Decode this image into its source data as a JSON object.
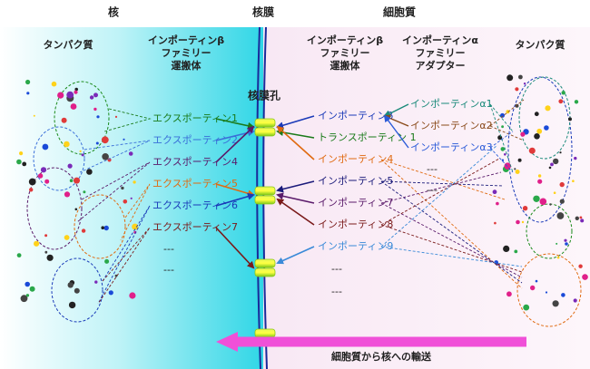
{
  "header": {
    "nucleus": "核",
    "membrane": "核膜",
    "cytoplasm": "細胞質"
  },
  "left": {
    "protein": "タンパク質",
    "carrier_title": [
      "インポーティンβ",
      "ファミリー",
      "運搬体"
    ],
    "items": [
      {
        "label": "エクスポーティン1",
        "color": "#1a7a1a"
      },
      {
        "label": "エクスポーティン2",
        "color": "#3a6fd8"
      },
      {
        "label": "エクスポーティン4",
        "color": "#5a1a6a"
      },
      {
        "label": "エクスポーティン5",
        "color": "#e06a10"
      },
      {
        "label": "エクスポーティン6",
        "color": "#1a3ab8"
      },
      {
        "label": "エクスポーティン7",
        "color": "#7a1a1a"
      },
      {
        "label": "---",
        "color": "#222"
      },
      {
        "label": "---",
        "color": "#222"
      }
    ]
  },
  "right": {
    "carrier_title": [
      "インポーティンβ",
      "ファミリー",
      "運搬体"
    ],
    "adapter_title": [
      "インポーティンα",
      "ファミリー",
      "アダプター"
    ],
    "protein": "タンパク質",
    "items": [
      {
        "label": "インポーティンβ",
        "color": "#1a3ab8"
      },
      {
        "label": "トランスポーティン 1",
        "color": "#1a7a1a"
      },
      {
        "label": "インポーティン4",
        "color": "#e06a10"
      },
      {
        "label": "インポーティン5",
        "color": "#1a1a7a"
      },
      {
        "label": "インポーティン7",
        "color": "#5a1a6a"
      },
      {
        "label": "インポーティン8",
        "color": "#7a1a1a"
      },
      {
        "label": "インポーティン9",
        "color": "#3a8ad8"
      },
      {
        "label": "---",
        "color": "#222"
      },
      {
        "label": "---",
        "color": "#222"
      }
    ],
    "adapters": [
      {
        "label": "インポーティンα1",
        "color": "#1a8a7a"
      },
      {
        "label": "インポーティンα2",
        "color": "#8a4a1a"
      },
      {
        "label": "インポーティンα3",
        "color": "#2a5ad8"
      },
      {
        "label": "---",
        "color": "#222"
      },
      {
        "label": "---",
        "color": "#222"
      }
    ]
  },
  "pore_label": "核膜孔",
  "transport_label": "細胞質から核への輸送"
}
